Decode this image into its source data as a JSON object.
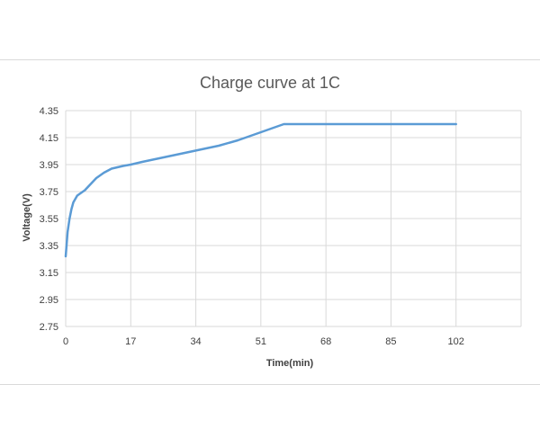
{
  "chart_data": {
    "type": "line",
    "title": "Charge curve at 1C",
    "xlabel": "Time(min)",
    "ylabel": "Voltage(V)",
    "xlim": [
      0,
      119
    ],
    "ylim": [
      2.75,
      4.35
    ],
    "x_ticks": [
      "0",
      "17",
      "34",
      "51",
      "68",
      "85",
      "102"
    ],
    "y_ticks": [
      "4.35",
      "4.15",
      "3.95",
      "3.75",
      "3.55",
      "3.35",
      "3.15",
      "2.95",
      "2.75"
    ],
    "grid": true,
    "legend": "none",
    "color": "#5b9bd5",
    "series": [
      {
        "x": [
          0,
          0.5,
          1,
          1.5,
          2,
          3,
          4,
          5,
          6,
          8,
          10,
          12,
          15,
          17,
          20,
          25,
          30,
          35,
          40,
          45,
          48,
          51,
          54,
          57,
          60,
          70,
          80,
          90,
          102
        ],
        "y": [
          3.27,
          3.45,
          3.55,
          3.62,
          3.67,
          3.72,
          3.74,
          3.76,
          3.79,
          3.85,
          3.89,
          3.92,
          3.94,
          3.95,
          3.97,
          4.0,
          4.03,
          4.06,
          4.09,
          4.13,
          4.16,
          4.19,
          4.22,
          4.25,
          4.25,
          4.25,
          4.25,
          4.25,
          4.25
        ]
      }
    ]
  }
}
